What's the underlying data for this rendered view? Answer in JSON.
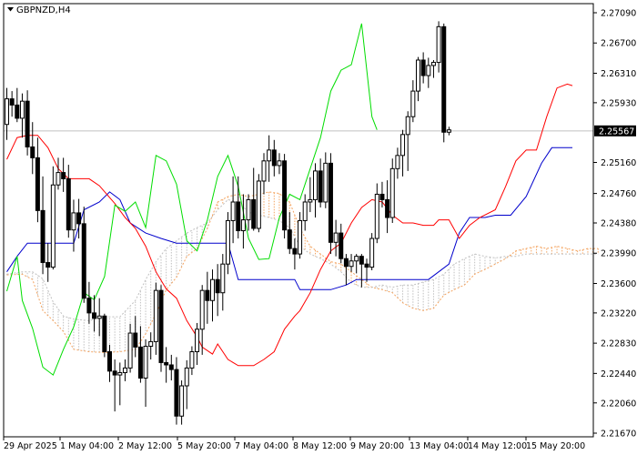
{
  "chart_data": {
    "type": "candlestick",
    "symbol_label": "GBPNZD,H4",
    "current_price": "2.25567",
    "x_labels": [
      "29 Apr 2025",
      "1 May 04:00",
      "2 May 12:00",
      "5 May 20:00",
      "7 May 04:00",
      "8 May 12:00",
      "9 May 20:00",
      "13 May 04:00",
      "14 May 12:00",
      "15 May 20:00"
    ],
    "y_ticks": [
      "2.27090",
      "2.26700",
      "2.26310",
      "2.25930",
      "2.25160",
      "2.24760",
      "2.24380",
      "2.23990",
      "2.23600",
      "2.23220",
      "2.22830",
      "2.22440",
      "2.22060",
      "2.21670"
    ],
    "ylim": [
      2.2167,
      2.2709
    ],
    "colors": {
      "candle": "#000000",
      "tenkan": "#ff0000",
      "kijun": "#0000cc",
      "chikou": "#00dd00",
      "kumo": "#f4a460",
      "kumo_alt": "#c0c0c0",
      "price_line": "#c0c0c0"
    },
    "candles": [
      [
        2.2565,
        2.2612,
        2.2545,
        2.2598
      ],
      [
        2.2598,
        2.2608,
        2.2575,
        2.259
      ],
      [
        2.259,
        2.2612,
        2.2568,
        2.2573
      ],
      [
        2.2573,
        2.2605,
        2.2548,
        2.2595
      ],
      [
        2.2595,
        2.2609,
        2.2525,
        2.2536
      ],
      [
        2.2536,
        2.2568,
        2.2501,
        2.2522
      ],
      [
        2.2522,
        2.2548,
        2.2439,
        2.2454
      ],
      [
        2.2454,
        2.2498,
        2.2372,
        2.2387
      ],
      [
        2.2387,
        2.2412,
        2.2362,
        2.2381
      ],
      [
        2.2381,
        2.2511,
        2.2378,
        2.2487
      ],
      [
        2.2487,
        2.2522,
        2.2481,
        2.2503
      ],
      [
        2.2503,
        2.2522,
        2.2478,
        2.2495
      ],
      [
        2.2495,
        2.2513,
        2.2419,
        2.2429
      ],
      [
        2.2429,
        2.2468,
        2.2401,
        2.2451
      ],
      [
        2.2451,
        2.2469,
        2.2418,
        2.2437
      ],
      [
        2.2437,
        2.2459,
        2.2335,
        2.2341
      ],
      [
        2.2341,
        2.2362,
        2.2308,
        2.2322
      ],
      [
        2.2322,
        2.2345,
        2.2298,
        2.2315
      ],
      [
        2.2315,
        2.2341,
        2.2292,
        2.2318
      ],
      [
        2.2318,
        2.2321,
        2.2265,
        2.2272
      ],
      [
        2.2272,
        2.2281,
        2.2233,
        2.2247
      ],
      [
        2.2247,
        2.2262,
        2.2195,
        2.2242
      ],
      [
        2.2242,
        2.2258,
        2.2203,
        2.2245
      ],
      [
        2.2245,
        2.2262,
        2.2234,
        2.2251
      ],
      [
        2.2251,
        2.2308,
        2.2245,
        2.2296
      ],
      [
        2.2296,
        2.2318,
        2.2265,
        2.2278
      ],
      [
        2.2278,
        2.2305,
        2.2232,
        2.2238
      ],
      [
        2.2238,
        2.2288,
        2.2201,
        2.2279
      ],
      [
        2.2279,
        2.2297,
        2.2262,
        2.2285
      ],
      [
        2.2285,
        2.2361,
        2.2268,
        2.2351
      ],
      [
        2.2351,
        2.2358,
        2.2246,
        2.2258
      ],
      [
        2.2258,
        2.2278,
        2.2232,
        2.2255
      ],
      [
        2.2255,
        2.2268,
        2.2235,
        2.2249
      ],
      [
        2.2249,
        2.2265,
        2.2178,
        2.2189
      ],
      [
        2.2189,
        2.2235,
        2.2178,
        2.2228
      ],
      [
        2.2228,
        2.2261,
        2.2198,
        2.2251
      ],
      [
        2.2251,
        2.2279,
        2.2242,
        2.2272
      ],
      [
        2.2272,
        2.2309,
        2.2255,
        2.2301
      ],
      [
        2.2301,
        2.2358,
        2.2268,
        2.2351
      ],
      [
        2.2351,
        2.2375,
        2.2308,
        2.2338
      ],
      [
        2.2338,
        2.2378,
        2.2311,
        2.2365
      ],
      [
        2.2365,
        2.2385,
        2.2318,
        2.2348
      ],
      [
        2.2348,
        2.2398,
        2.2325,
        2.2385
      ],
      [
        2.2385,
        2.2452,
        2.2372,
        2.2441
      ],
      [
        2.2441,
        2.2498,
        2.2412,
        2.2465
      ],
      [
        2.2465,
        2.2498,
        2.2418,
        2.2428
      ],
      [
        2.2428,
        2.2475,
        2.2405,
        2.2442
      ],
      [
        2.2442,
        2.2475,
        2.2428,
        2.2468
      ],
      [
        2.2468,
        2.2509,
        2.2428,
        2.2431
      ],
      [
        2.2431,
        2.2501,
        2.2426,
        2.2492
      ],
      [
        2.2492,
        2.2528,
        2.2475,
        2.2518
      ],
      [
        2.2518,
        2.2551,
        2.2491,
        2.2532
      ],
      [
        2.2532,
        2.2545,
        2.2498,
        2.2512
      ],
      [
        2.2512,
        2.2528,
        2.2501,
        2.2518
      ],
      [
        2.2518,
        2.2527,
        2.2418,
        2.2429
      ],
      [
        2.2429,
        2.2452,
        2.2398,
        2.2405
      ],
      [
        2.2405,
        2.2418,
        2.2378,
        2.2398
      ],
      [
        2.2398,
        2.2452,
        2.2392,
        2.2441
      ],
      [
        2.2441,
        2.2475,
        2.2428,
        2.2465
      ],
      [
        2.2465,
        2.2497,
        2.2452,
        2.2468
      ],
      [
        2.2468,
        2.2515,
        2.2445,
        2.2505
      ],
      [
        2.2505,
        2.2521,
        2.2458,
        2.2465
      ],
      [
        2.2465,
        2.2529,
        2.2457,
        2.2515
      ],
      [
        2.2515,
        2.2528,
        2.2398,
        2.2413
      ],
      [
        2.2413,
        2.2442,
        2.2395,
        2.2425
      ],
      [
        2.2425,
        2.2437,
        2.2386,
        2.2392
      ],
      [
        2.2392,
        2.2398,
        2.2358,
        2.2382
      ],
      [
        2.2382,
        2.2398,
        2.2375,
        2.2389
      ],
      [
        2.2389,
        2.2398,
        2.2373,
        2.2395
      ],
      [
        2.2395,
        2.2398,
        2.2355,
        2.2385
      ],
      [
        2.2385,
        2.2392,
        2.2362,
        2.2381
      ],
      [
        2.2381,
        2.2425,
        2.2377,
        2.2418
      ],
      [
        2.2418,
        2.2489,
        2.2412,
        2.2475
      ],
      [
        2.2475,
        2.2491,
        2.2458,
        2.2468
      ],
      [
        2.2468,
        2.2493,
        2.2425,
        2.2445
      ],
      [
        2.2445,
        2.2521,
        2.2438,
        2.2508
      ],
      [
        2.2508,
        2.2535,
        2.2495,
        2.2525
      ],
      [
        2.2525,
        2.2558,
        2.2498,
        2.2552
      ],
      [
        2.2552,
        2.2582,
        2.2505,
        2.2575
      ],
      [
        2.2575,
        2.2622,
        2.2568,
        2.2608
      ],
      [
        2.2608,
        2.2652,
        2.2595,
        2.2648
      ],
      [
        2.2648,
        2.2658,
        2.2618,
        2.2628
      ],
      [
        2.2628,
        2.2651,
        2.2612,
        2.2641
      ],
      [
        2.2641,
        2.2648,
        2.2625,
        2.2645
      ],
      [
        2.2645,
        2.2698,
        2.2632,
        2.2691
      ],
      [
        2.2691,
        2.2695,
        2.2542,
        2.2555
      ],
      [
        2.2555,
        2.2562,
        2.2551,
        2.2558
      ]
    ],
    "tenkan": [
      [
        0,
        2.252
      ],
      [
        2,
        2.2548
      ],
      [
        4,
        2.2551
      ],
      [
        6,
        2.2551
      ],
      [
        8,
        2.2535
      ],
      [
        10,
        2.2508
      ],
      [
        12,
        2.2495
      ],
      [
        16,
        2.2495
      ],
      [
        18,
        2.2486
      ],
      [
        21,
        2.2463
      ],
      [
        23,
        2.2445
      ],
      [
        25,
        2.2431
      ],
      [
        27,
        2.2408
      ],
      [
        29,
        2.2375
      ],
      [
        31,
        2.2353
      ],
      [
        33,
        2.2341
      ],
      [
        35,
        2.2312
      ],
      [
        37,
        2.2291
      ],
      [
        38,
        2.2278
      ],
      [
        40,
        2.2269
      ],
      [
        41,
        2.2282
      ],
      [
        43,
        2.2262
      ],
      [
        45,
        2.2254
      ],
      [
        48,
        2.2254
      ],
      [
        50,
        2.2262
      ],
      [
        52,
        2.2272
      ],
      [
        54,
        2.2301
      ],
      [
        56,
        2.2318
      ],
      [
        57,
        2.2325
      ],
      [
        59,
        2.2348
      ],
      [
        61,
        2.2378
      ],
      [
        63,
        2.2402
      ],
      [
        65,
        2.2412
      ],
      [
        67,
        2.2438
      ],
      [
        69,
        2.2458
      ],
      [
        71,
        2.2468
      ],
      [
        73,
        2.2465
      ],
      [
        75,
        2.2448
      ],
      [
        77,
        2.2438
      ],
      [
        79,
        2.2438
      ],
      [
        81,
        2.2435
      ],
      [
        83,
        2.2435
      ],
      [
        84,
        2.2442
      ],
      [
        86,
        2.2442
      ],
      [
        88,
        2.2418
      ],
      [
        90,
        2.2435
      ],
      [
        92,
        2.2445
      ],
      [
        95,
        2.2455
      ],
      [
        97,
        2.2485
      ],
      [
        99,
        2.2518
      ],
      [
        101,
        2.2532
      ],
      [
        103,
        2.2532
      ],
      [
        105,
        2.2575
      ],
      [
        107,
        2.2612
      ],
      [
        109,
        2.2617
      ],
      [
        110,
        2.2615
      ]
    ],
    "kijun": [
      [
        0,
        2.2375
      ],
      [
        2,
        2.2395
      ],
      [
        4,
        2.2412
      ],
      [
        7,
        2.2412
      ],
      [
        9,
        2.2412
      ],
      [
        13,
        2.2412
      ],
      [
        15,
        2.2455
      ],
      [
        18,
        2.2465
      ],
      [
        20,
        2.2478
      ],
      [
        22,
        2.2468
      ],
      [
        24,
        2.2438
      ],
      [
        27,
        2.2425
      ],
      [
        30,
        2.2418
      ],
      [
        33,
        2.2412
      ],
      [
        36,
        2.2412
      ],
      [
        40,
        2.2412
      ],
      [
        43,
        2.2412
      ],
      [
        45,
        2.2365
      ],
      [
        48,
        2.2365
      ],
      [
        53,
        2.2365
      ],
      [
        56,
        2.2365
      ],
      [
        57,
        2.2352
      ],
      [
        59,
        2.2352
      ],
      [
        63,
        2.2352
      ],
      [
        66,
        2.2358
      ],
      [
        68,
        2.2365
      ],
      [
        71,
        2.2365
      ],
      [
        73,
        2.2365
      ],
      [
        76,
        2.2365
      ],
      [
        82,
        2.2365
      ],
      [
        86,
        2.2385
      ],
      [
        88,
        2.2425
      ],
      [
        90,
        2.2445
      ],
      [
        93,
        2.2445
      ],
      [
        95,
        2.2448
      ],
      [
        98,
        2.2448
      ],
      [
        101,
        2.2472
      ],
      [
        104,
        2.2515
      ],
      [
        106,
        2.2535
      ],
      [
        108,
        2.2535
      ],
      [
        110,
        2.2535
      ]
    ],
    "chikou": [
      [
        0,
        2.235
      ],
      [
        2,
        2.2395
      ],
      [
        3,
        2.2338
      ],
      [
        5,
        2.2302
      ],
      [
        7,
        2.2252
      ],
      [
        9,
        2.2242
      ],
      [
        11,
        2.2275
      ],
      [
        13,
        2.2304
      ],
      [
        15,
        2.2348
      ],
      [
        17,
        2.2339
      ],
      [
        19,
        2.2369
      ],
      [
        21,
        2.2461
      ],
      [
        23,
        2.2453
      ],
      [
        25,
        2.2465
      ],
      [
        27,
        2.2432
      ],
      [
        29,
        2.2525
      ],
      [
        31,
        2.2518
      ],
      [
        33,
        2.2488
      ],
      [
        35,
        2.2415
      ],
      [
        37,
        2.2402
      ],
      [
        39,
        2.2442
      ],
      [
        41,
        2.2498
      ],
      [
        43,
        2.2525
      ],
      [
        45,
        2.2485
      ],
      [
        47,
        2.2418
      ],
      [
        49,
        2.2391
      ],
      [
        51,
        2.2392
      ],
      [
        53,
        2.2445
      ],
      [
        55,
        2.2475
      ],
      [
        57,
        2.2468
      ],
      [
        59,
        2.2508
      ],
      [
        61,
        2.2548
      ],
      [
        63,
        2.2608
      ],
      [
        65,
        2.2635
      ],
      [
        67,
        2.2642
      ],
      [
        69,
        2.2695
      ],
      [
        71,
        2.2575
      ],
      [
        72,
        2.2558
      ]
    ],
    "kumo_span_a": [
      [
        0,
        2.2371
      ],
      [
        3,
        2.2372
      ],
      [
        5,
        2.2365
      ],
      [
        7,
        2.2325
      ],
      [
        9,
        2.2312
      ],
      [
        11,
        2.2298
      ],
      [
        13,
        2.2275
      ],
      [
        16,
        2.2272
      ],
      [
        19,
        2.2271
      ],
      [
        22,
        2.2272
      ],
      [
        25,
        2.2275
      ],
      [
        27,
        2.2295
      ],
      [
        29,
        2.2321
      ],
      [
        31,
        2.2352
      ],
      [
        33,
        2.2368
      ],
      [
        35,
        2.2395
      ],
      [
        37,
        2.2405
      ],
      [
        39,
        2.2431
      ],
      [
        41,
        2.2465
      ],
      [
        43,
        2.2472
      ],
      [
        45,
        2.2475
      ],
      [
        47,
        2.2472
      ],
      [
        49,
        2.2475
      ],
      [
        51,
        2.2478
      ],
      [
        53,
        2.2476
      ],
      [
        55,
        2.2465
      ],
      [
        57,
        2.2431
      ],
      [
        59,
        2.2408
      ],
      [
        61,
        2.2398
      ],
      [
        63,
        2.2388
      ],
      [
        65,
        2.2385
      ],
      [
        67,
        2.2375
      ],
      [
        69,
        2.2365
      ],
      [
        71,
        2.2355
      ],
      [
        73,
        2.2352
      ],
      [
        75,
        2.2348
      ],
      [
        77,
        2.2335
      ],
      [
        79,
        2.2328
      ],
      [
        81,
        2.2325
      ],
      [
        83,
        2.2328
      ],
      [
        85,
        2.2345
      ],
      [
        87,
        2.2352
      ],
      [
        89,
        2.2358
      ],
      [
        91,
        2.2372
      ],
      [
        93,
        2.2378
      ],
      [
        95,
        2.2385
      ],
      [
        97,
        2.2392
      ],
      [
        99,
        2.2402
      ],
      [
        101,
        2.2405
      ],
      [
        103,
        2.2408
      ],
      [
        105,
        2.2405
      ],
      [
        107,
        2.2408
      ],
      [
        109,
        2.2405
      ],
      [
        111,
        2.2402
      ],
      [
        113,
        2.2405
      ],
      [
        115,
        2.2405
      ]
    ],
    "kumo_span_b": [
      [
        0,
        2.2372
      ],
      [
        3,
        2.2375
      ],
      [
        5,
        2.2375
      ],
      [
        7,
        2.2366
      ],
      [
        9,
        2.2336
      ],
      [
        11,
        2.2318
      ],
      [
        13,
        2.2314
      ],
      [
        16,
        2.2312
      ],
      [
        19,
        2.2317
      ],
      [
        22,
        2.2317
      ],
      [
        25,
        2.2338
      ],
      [
        27,
        2.2365
      ],
      [
        29,
        2.2388
      ],
      [
        31,
        2.2405
      ],
      [
        33,
        2.2415
      ],
      [
        35,
        2.2425
      ],
      [
        37,
        2.2432
      ],
      [
        39,
        2.2438
      ],
      [
        41,
        2.2455
      ],
      [
        43,
        2.2468
      ],
      [
        45,
        2.2465
      ],
      [
        47,
        2.2452
      ],
      [
        49,
        2.2448
      ],
      [
        51,
        2.2445
      ],
      [
        53,
        2.2441
      ],
      [
        55,
        2.2432
      ],
      [
        57,
        2.2408
      ],
      [
        59,
        2.2398
      ],
      [
        61,
        2.2392
      ],
      [
        63,
        2.2385
      ],
      [
        65,
        2.2375
      ],
      [
        67,
        2.2361
      ],
      [
        69,
        2.2355
      ],
      [
        71,
        2.2355
      ],
      [
        73,
        2.2358
      ],
      [
        75,
        2.2355
      ],
      [
        77,
        2.2358
      ],
      [
        79,
        2.2358
      ],
      [
        81,
        2.2362
      ],
      [
        83,
        2.2365
      ],
      [
        85,
        2.2372
      ],
      [
        87,
        2.2385
      ],
      [
        89,
        2.2392
      ],
      [
        91,
        2.2398
      ],
      [
        93,
        2.2395
      ],
      [
        95,
        2.2393
      ],
      [
        97,
        2.2395
      ],
      [
        99,
        2.2395
      ],
      [
        101,
        2.2398
      ],
      [
        103,
        2.2398
      ],
      [
        105,
        2.2398
      ],
      [
        107,
        2.2398
      ],
      [
        109,
        2.2398
      ],
      [
        111,
        2.2398
      ],
      [
        113,
        2.2398
      ],
      [
        115,
        2.2398
      ]
    ]
  }
}
